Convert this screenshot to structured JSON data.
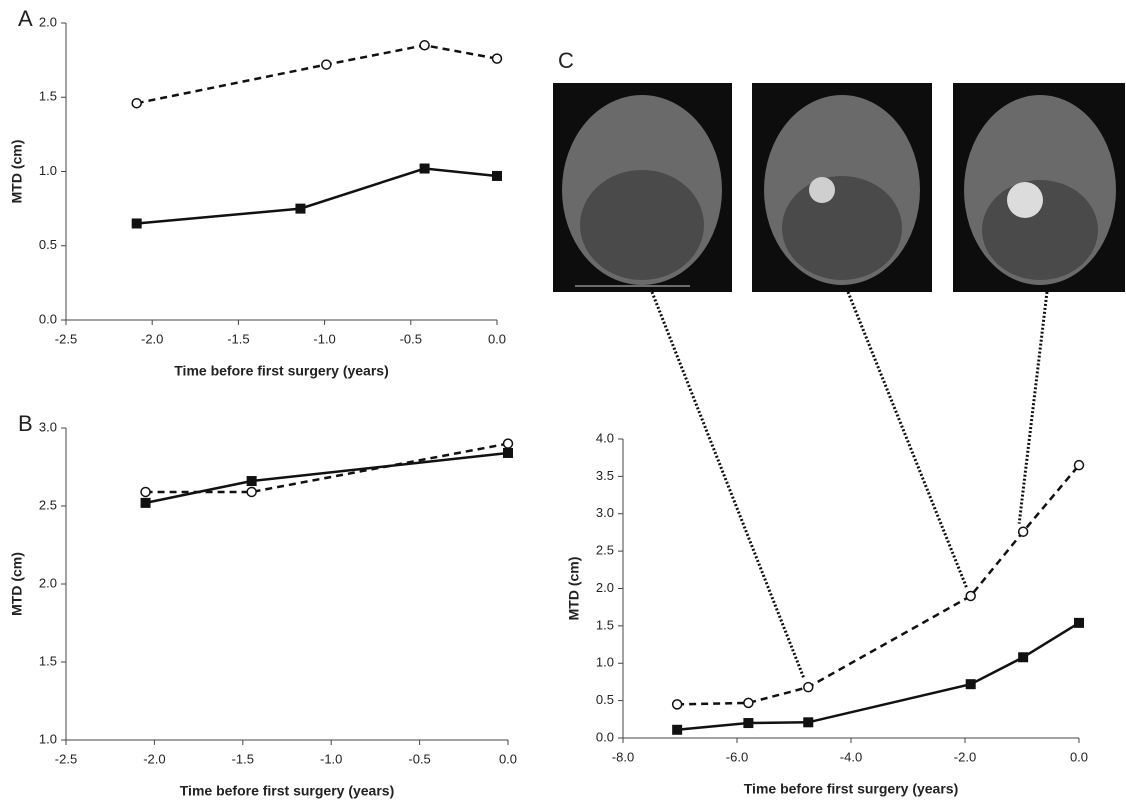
{
  "chart_data": [
    {
      "type": "line",
      "panel": "A",
      "y_label": "MTD (cm)",
      "x_label": "Time before first surgery (years)",
      "xlim": [
        -2.5,
        0
      ],
      "xticks": [
        -2.5,
        {
          "value": -2,
          "label": "-2.0"
        },
        -1.5,
        {
          "value": -1,
          "label": "-1.0"
        },
        -0.5,
        {
          "value": 0,
          "label": "0.0"
        }
      ],
      "ylim": [
        0,
        2
      ],
      "yticks": [
        {
          "value": 0,
          "label": "0.0"
        },
        0.5,
        {
          "value": 1,
          "label": "1.0"
        },
        1.5,
        {
          "value": 2,
          "label": "2.0"
        }
      ],
      "series": [
        {
          "color": "#111111",
          "style": "dashed",
          "marker": "circle",
          "x": [
            -2.09,
            -0.99,
            -0.42,
            0
          ],
          "values": [
            1.46,
            1.72,
            1.85,
            1.76
          ]
        },
        {
          "color": "#111111",
          "style": "solid",
          "marker": "square",
          "x": [
            -2.09,
            -1.14,
            -0.42,
            0
          ],
          "values": [
            0.65,
            0.75,
            1.02,
            0.97
          ]
        }
      ]
    },
    {
      "type": "line",
      "panel": "B",
      "y_label": "MTD (cm)",
      "x_label": "Time before first surgery (years)",
      "xlim": [
        -2.5,
        0
      ],
      "xticks": [
        -2.5,
        {
          "value": -2,
          "label": "-2.0"
        },
        -1.5,
        {
          "value": -1,
          "label": "-1.0"
        },
        -0.5,
        {
          "value": 0,
          "label": "0.0"
        }
      ],
      "ylim": [
        1,
        3
      ],
      "yticks": [
        {
          "value": 1,
          "label": "1.0"
        },
        1.5,
        {
          "value": 2,
          "label": "2.0"
        },
        2.5,
        {
          "value": 3,
          "label": "3.0"
        }
      ],
      "series": [
        {
          "color": "#111111",
          "style": "dashed",
          "marker": "circle",
          "x": [
            -2.05,
            -1.45,
            0
          ],
          "values": [
            2.59,
            2.59,
            2.9
          ]
        },
        {
          "color": "#111111",
          "style": "solid",
          "marker": "square",
          "x": [
            -2.05,
            -1.45,
            0
          ],
          "values": [
            2.52,
            2.66,
            2.84
          ]
        }
      ]
    },
    {
      "type": "line",
      "panel": "C",
      "y_label": "MTD (cm)",
      "x_label": "Time before first surgery (years)",
      "xlim": [
        -8,
        0
      ],
      "xticks": [
        {
          "value": -8,
          "label": "-8.0"
        },
        {
          "value": -6,
          "label": "-6.0"
        },
        {
          "value": -4,
          "label": "-4.0"
        },
        {
          "value": -2,
          "label": "-2.0"
        },
        {
          "value": 0,
          "label": "0.0"
        }
      ],
      "ylim": [
        0,
        4
      ],
      "yticks": [
        {
          "value": 0,
          "label": "0.0"
        },
        0.5,
        {
          "value": 1,
          "label": "1.0"
        },
        1.5,
        {
          "value": 2,
          "label": "2.0"
        },
        2.5,
        {
          "value": 3,
          "label": "3.0"
        },
        3.5,
        {
          "value": 4,
          "label": "4.0"
        }
      ],
      "series": [
        {
          "color": "#111111",
          "style": "dashed",
          "marker": "circle",
          "x": [
            -7.05,
            -5.8,
            -4.75,
            -1.9,
            -0.98,
            0
          ],
          "values": [
            0.45,
            0.47,
            0.68,
            1.9,
            2.76,
            3.65
          ]
        },
        {
          "color": "#111111",
          "style": "solid",
          "marker": "square",
          "x": [
            -7.05,
            -5.8,
            -4.75,
            -1.9,
            -0.98,
            0
          ],
          "values": [
            0.11,
            0.2,
            0.21,
            0.72,
            1.08,
            1.54
          ]
        }
      ]
    }
  ]
}
